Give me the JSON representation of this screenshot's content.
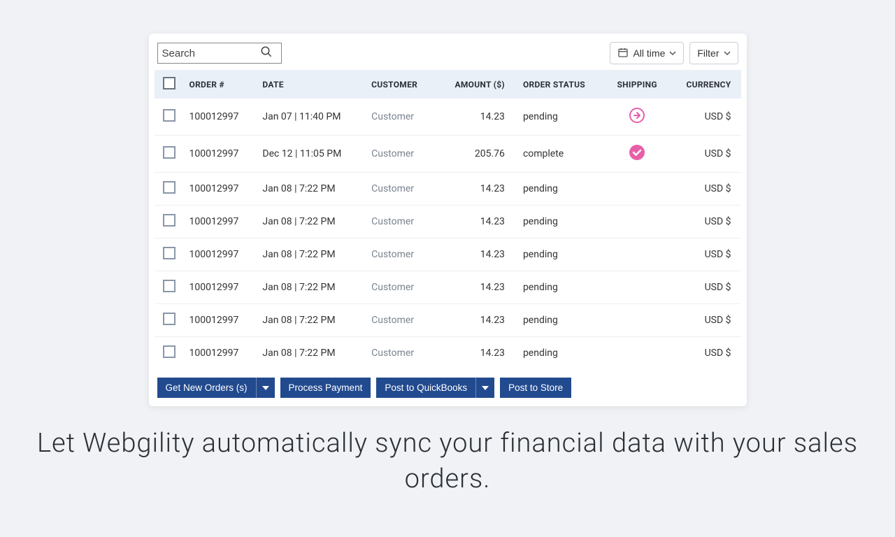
{
  "search": {
    "placeholder": "Search"
  },
  "toolbar": {
    "all_time_label": "All time",
    "filter_label": "Filter"
  },
  "table": {
    "headers": {
      "order": "ORDER #",
      "date": "DATE",
      "customer": "CUSTOMER",
      "amount": "AMOUNT ($)",
      "order_status": "ORDER STATUS",
      "shipping": "SHIPPING",
      "currency": "CURRENCY"
    },
    "rows": [
      {
        "order": "100012997",
        "date": "Jan 07 | 11:40 PM",
        "customer": "Customer",
        "amount": "14.23",
        "status": "pending",
        "shipping": "arrow",
        "currency": "USD $"
      },
      {
        "order": "100012997",
        "date": "Dec 12 | 11:05 PM",
        "customer": "Customer",
        "amount": "205.76",
        "status": "complete",
        "shipping": "check",
        "currency": "USD $"
      },
      {
        "order": "100012997",
        "date": "Jan 08 | 7:22 PM",
        "customer": "Customer",
        "amount": "14.23",
        "status": "pending",
        "shipping": "",
        "currency": "USD $"
      },
      {
        "order": "100012997",
        "date": "Jan 08 | 7:22 PM",
        "customer": "Customer",
        "amount": "14.23",
        "status": "pending",
        "shipping": "",
        "currency": "USD $"
      },
      {
        "order": "100012997",
        "date": "Jan 08 | 7:22 PM",
        "customer": "Customer",
        "amount": "14.23",
        "status": "pending",
        "shipping": "",
        "currency": "USD $"
      },
      {
        "order": "100012997",
        "date": "Jan 08 | 7:22 PM",
        "customer": "Customer",
        "amount": "14.23",
        "status": "pending",
        "shipping": "",
        "currency": "USD $"
      },
      {
        "order": "100012997",
        "date": "Jan 08 | 7:22 PM",
        "customer": "Customer",
        "amount": "14.23",
        "status": "pending",
        "shipping": "",
        "currency": "USD $"
      },
      {
        "order": "100012997",
        "date": "Jan 08 | 7:22 PM",
        "customer": "Customer",
        "amount": "14.23",
        "status": "pending",
        "shipping": "",
        "currency": "USD $"
      }
    ]
  },
  "actions": {
    "get_new_orders": "Get New Orders (s)",
    "process_payment": "Process Payment",
    "post_quickbooks": "Post to QuickBooks",
    "post_store": "Post to Store"
  },
  "headline": "Let Webgility automatically sync your financial data with your sales orders.",
  "colors": {
    "pink": "#e85fa9",
    "navy": "#224a8f"
  }
}
